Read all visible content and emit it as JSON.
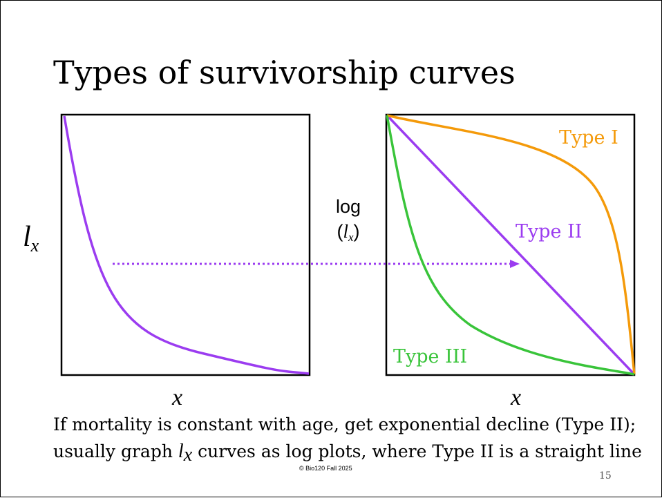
{
  "slide": {
    "title": "Types of survivorship curves",
    "footer": "© Bio120 Fall 2025",
    "page_number": "15"
  },
  "left_plot": {
    "y_label": {
      "symbol": "l",
      "subscript": "x"
    },
    "x_label": "x"
  },
  "right_plot": {
    "y_label": {
      "prefix": "log",
      "symbol": "l",
      "subscript": "x"
    },
    "x_label": "x",
    "series_labels": {
      "type1": "Type I",
      "type2": "Type II",
      "type3": "Type III"
    }
  },
  "colors": {
    "type1": "#f49a0a",
    "type2": "#9b3cf0",
    "type3": "#39c43a",
    "axis": "#000000"
  },
  "caption": {
    "seg1": "If mortality is constant with age, get exponential decline (Type II); usually graph ",
    "symbol": "l",
    "subscript": "x",
    "seg2": " curves as log plots, where Type II is a straight line"
  }
}
